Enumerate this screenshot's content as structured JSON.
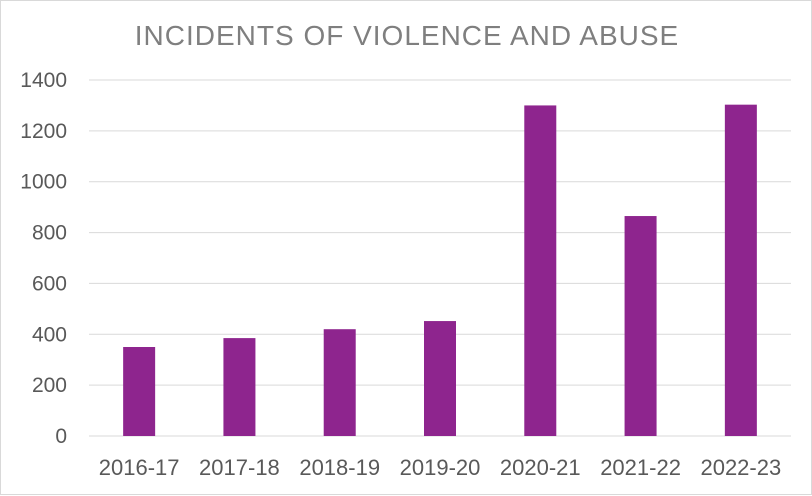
{
  "chart_data": {
    "type": "bar",
    "title": "INCIDENTS OF VIOLENCE AND ABUSE",
    "xlabel": "",
    "ylabel": "",
    "categories": [
      "2016-17",
      "2017-18",
      "2018-19",
      "2019-20",
      "2020-21",
      "2021-22",
      "2022-23"
    ],
    "values": [
      350,
      385,
      420,
      452,
      1300,
      865,
      1303
    ],
    "ylim": [
      0,
      1400
    ],
    "yticks": [
      0,
      200,
      400,
      600,
      800,
      1000,
      1200,
      1400
    ],
    "grid": true,
    "legend": "none",
    "bar_color": "#8e258e",
    "grid_color": "#d9d9d9",
    "text_color": "#595959"
  }
}
